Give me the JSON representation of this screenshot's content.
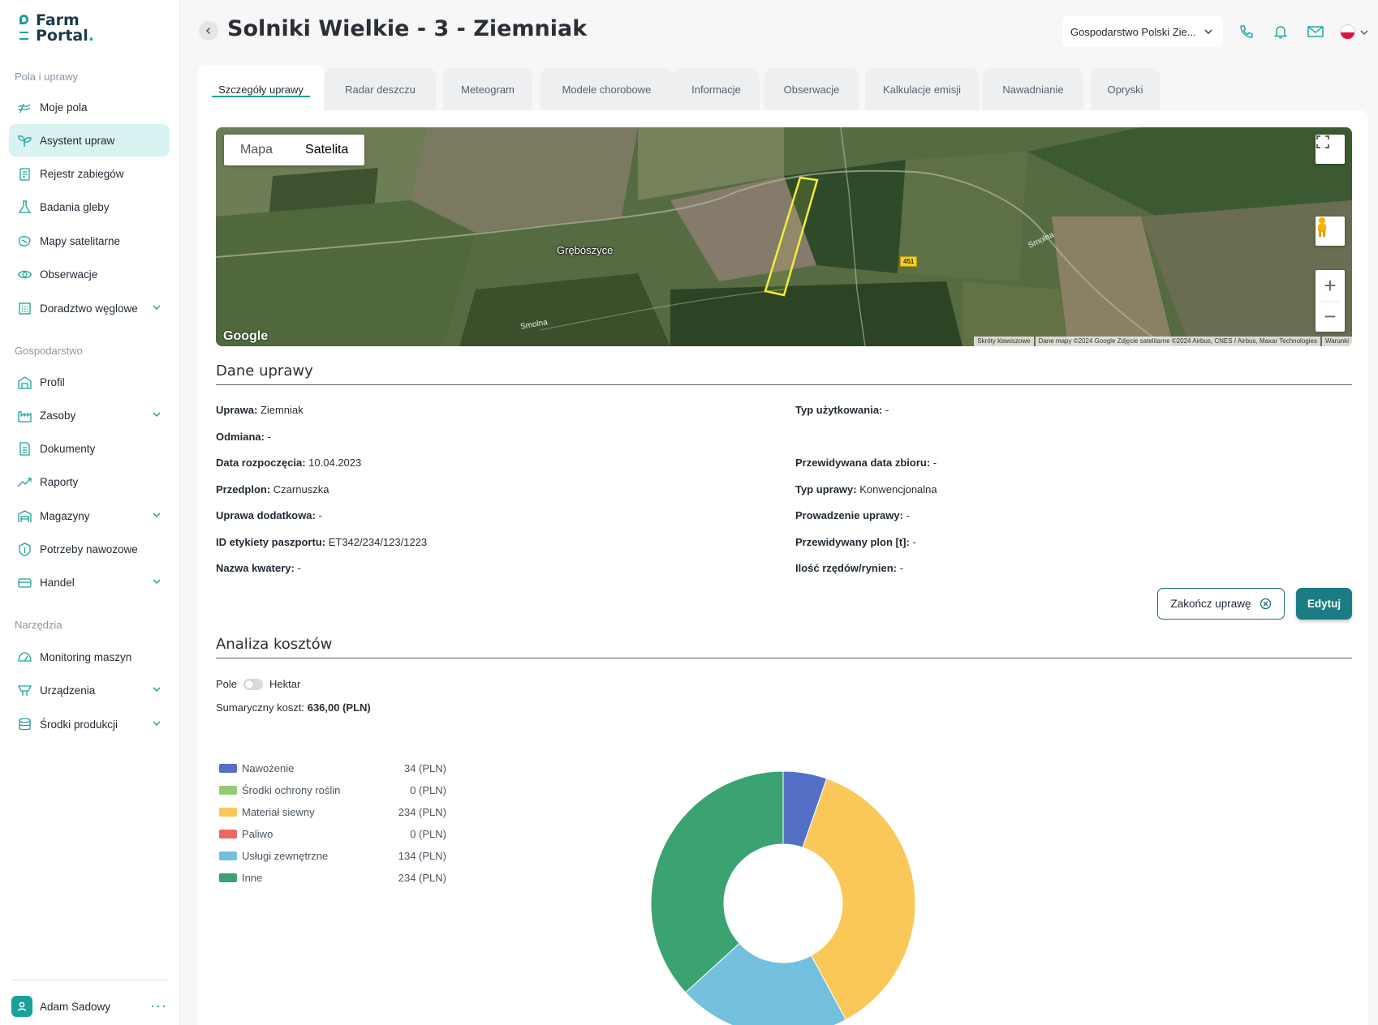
{
  "app": {
    "logo_line1": "Farm",
    "logo_line2": "Portal",
    "logo_dot": "."
  },
  "sidebar": {
    "section1": "Pola i uprawy",
    "section2": "Gospodarstwo",
    "section3": "Narzędzia",
    "items": [
      {
        "label": "Moje pola",
        "icon": "fields-icon"
      },
      {
        "label": "Asystent upraw",
        "icon": "sprout-icon",
        "active": true
      },
      {
        "label": "Rejestr zabiegów",
        "icon": "clipboard-icon"
      },
      {
        "label": "Badania gleby",
        "icon": "flask-icon"
      },
      {
        "label": "Mapy satelitarne",
        "icon": "satellite-map-icon"
      },
      {
        "label": "Obserwacje",
        "icon": "eye-icon"
      },
      {
        "label": "Doradztwo węglowe",
        "icon": "carbon-icon",
        "expandable": true
      },
      {
        "label": "Profil",
        "icon": "barn-icon"
      },
      {
        "label": "Zasoby",
        "icon": "factory-icon",
        "expandable": true
      },
      {
        "label": "Dokumenty",
        "icon": "document-icon"
      },
      {
        "label": "Raporty",
        "icon": "trend-up-icon"
      },
      {
        "label": "Magazyny",
        "icon": "warehouse-icon",
        "expandable": true
      },
      {
        "label": "Potrzeby nawozowe",
        "icon": "leaf-shield-icon"
      },
      {
        "label": "Handel",
        "icon": "handshake-icon",
        "expandable": true
      },
      {
        "label": "Monitoring maszyn",
        "icon": "gauge-icon"
      },
      {
        "label": "Urządzenia",
        "icon": "device-icon",
        "expandable": true
      },
      {
        "label": "Środki produkcji",
        "icon": "database-icon",
        "expandable": true
      }
    ],
    "user_name": "Adam Sadowy",
    "user_more": "···"
  },
  "header": {
    "title": "Solniki Wielkie - 3 - Ziemniak",
    "farm_select": "Gospodarstwo Polski Zie...",
    "icons": [
      "phone-icon",
      "bell-icon",
      "mail-icon",
      "flag-pl-icon"
    ]
  },
  "tabs": [
    {
      "label": "Szczegóły uprawy",
      "active": true
    },
    {
      "label": "Radar deszczu"
    },
    {
      "label": "Meteogram"
    },
    {
      "label": "Modele chorobowe"
    },
    {
      "label": "Informacje"
    },
    {
      "label": "Obserwacje"
    },
    {
      "label": "Kalkulacje emisji"
    },
    {
      "label": "Nawadnianie"
    },
    {
      "label": "Opryski"
    }
  ],
  "map": {
    "type_map": "Mapa",
    "type_satellite": "Satelita",
    "selected": "Satelita",
    "village": "Grębószyce",
    "road1": "Smolna",
    "road2": "Smolna",
    "road_number": "451",
    "google": "Google",
    "footer_shortcuts": "Skróty klawiszowe",
    "footer_data": "Dane mapy ©2024 Google Zdjęcie satelitarne ©2024 Airbus, CNES / Airbus, Maxar Technologies",
    "footer_terms": "Warunki",
    "zoom_in": "+",
    "zoom_out": "−"
  },
  "crop_data": {
    "section_title": "Dane uprawy",
    "left": [
      {
        "label": "Uprawa:",
        "value": "Ziemniak"
      },
      {
        "label": "Odmiana:",
        "value": "-"
      },
      {
        "label": "Data rozpoczęcia:",
        "value": "10.04.2023"
      },
      {
        "label": "Przedplon:",
        "value": "Czarnuszka"
      },
      {
        "label": "Uprawa dodatkowa:",
        "value": "-"
      },
      {
        "label": "ID etykiety paszportu:",
        "value": "ET342/234/123/1223"
      },
      {
        "label": "Nazwa kwatery:",
        "value": "-"
      }
    ],
    "right": [
      {
        "label": "Typ użytkowania:",
        "value": "-"
      },
      {
        "label": "Przewidywana data zbioru:",
        "value": "-"
      },
      {
        "label": "Typ uprawy:",
        "value": "Konwencjonalna"
      },
      {
        "label": "Prowadzenie uprawy:",
        "value": "-"
      },
      {
        "label": "Przewidywany plon [t]:",
        "value": "-"
      },
      {
        "label": "Ilość rzędów/rynien:",
        "value": "-"
      }
    ],
    "finish_button": "Zakończ uprawę",
    "edit_button": "Edytuj"
  },
  "cost_analysis": {
    "section_title": "Analiza kosztów",
    "toggle_left": "Pole",
    "toggle_right": "Hektar",
    "total_label": "Sumaryczny koszt:",
    "total_value": "636,00 (PLN)"
  },
  "chart_data": {
    "type": "pie",
    "categories": [
      "Nawożenie",
      "Środki ochrony roślin",
      "Materiał siewny",
      "Paliwo",
      "Usługi zewnętrzne",
      "Inne"
    ],
    "values": [
      34,
      0,
      234,
      0,
      134,
      234
    ],
    "value_labels": [
      "34 (PLN)",
      "0 (PLN)",
      "234 (PLN)",
      "0 (PLN)",
      "134 (PLN)",
      "234 (PLN)"
    ],
    "colors": [
      "#5470c6",
      "#91cc75",
      "#fac858",
      "#ee6666",
      "#73c0de",
      "#3ba272"
    ],
    "legend_position": "left"
  }
}
